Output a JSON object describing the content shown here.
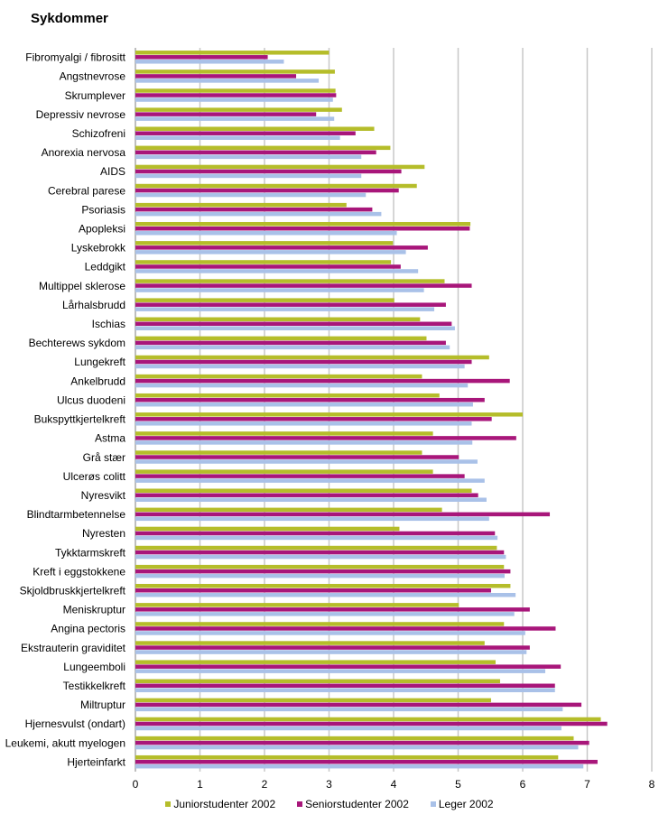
{
  "chart_data": {
    "type": "bar",
    "orientation": "horizontal",
    "title": "Sykdommer",
    "xlabel": "",
    "ylabel": "",
    "xlim": [
      0,
      8
    ],
    "xticks": [
      0,
      1,
      2,
      3,
      4,
      5,
      6,
      7,
      8
    ],
    "grid": "vertical",
    "legend_position": "bottom",
    "categories": [
      "Fibromyalgi / fibrositt",
      "Angstnevrose",
      "Skrumplever",
      "Depressiv nevrose",
      "Schizofreni",
      "Anorexia nervosa",
      "AIDS",
      "Cerebral parese",
      "Psoriasis",
      "Apopleksi",
      "Lyskebrokk",
      "Leddgikt",
      "Multippel sklerose",
      "Lårhalsbrudd",
      "Ischias",
      "Bechterews sykdom",
      "Lungekreft",
      "Ankelbrudd",
      "Ulcus duodeni",
      "Bukspyttkjertelkreft",
      "Astma",
      "Grå stær",
      "Ulcerøs colitt",
      "Nyresvikt",
      "Blindtarmbetennelse",
      "Nyresten",
      "Tykktarmskreft",
      "Kreft i eggstokkene",
      "Skjoldbruskkjertelkreft",
      "Meniskruptur",
      "Angina pectoris",
      "Ekstrauterin graviditet",
      "Lungeemboli",
      "Testikkelkreft",
      "Miltruptur",
      "Hjernesvulst (ondart)",
      "Leukemi, akutt myelogen",
      "Hjerteinfarkt"
    ],
    "series": [
      {
        "name": "Juniorstudenter 2002",
        "color": "#b5bd2a",
        "values": [
          3.0,
          3.09,
          3.1,
          3.2,
          3.7,
          3.95,
          4.48,
          4.36,
          3.27,
          5.19,
          3.99,
          3.96,
          4.79,
          4.01,
          4.41,
          4.51,
          5.48,
          4.44,
          4.71,
          6.0,
          4.61,
          4.44,
          4.61,
          5.21,
          4.75,
          4.09,
          5.6,
          5.71,
          5.81,
          5.01,
          5.71,
          5.41,
          5.58,
          5.65,
          5.51,
          7.21,
          6.79,
          6.55
        ]
      },
      {
        "name": "Seniorstudenter 2002",
        "color": "#a8167a",
        "values": [
          2.05,
          2.49,
          3.11,
          2.8,
          3.41,
          3.73,
          4.12,
          4.08,
          3.67,
          5.18,
          4.53,
          4.11,
          5.21,
          4.81,
          4.9,
          4.81,
          5.21,
          5.8,
          5.41,
          5.52,
          5.9,
          5.01,
          5.1,
          5.31,
          6.42,
          5.57,
          5.71,
          5.81,
          5.51,
          6.11,
          6.51,
          6.11,
          6.59,
          6.5,
          6.91,
          7.31,
          7.03,
          7.16
        ]
      },
      {
        "name": "Leger 2002",
        "color": "#a9c1e8",
        "values": [
          2.3,
          2.84,
          3.06,
          3.08,
          3.17,
          3.5,
          3.5,
          3.57,
          3.81,
          4.05,
          4.19,
          4.38,
          4.47,
          4.63,
          4.95,
          4.87,
          5.1,
          5.15,
          5.23,
          5.21,
          5.22,
          5.3,
          5.41,
          5.44,
          5.48,
          5.61,
          5.74,
          5.72,
          5.89,
          5.87,
          6.04,
          6.06,
          6.35,
          6.5,
          6.62,
          6.6,
          6.86,
          6.94
        ]
      }
    ]
  }
}
